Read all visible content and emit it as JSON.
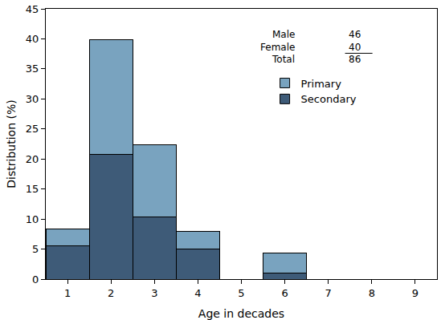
{
  "chart_data": {
    "type": "bar",
    "stacked": true,
    "x_label": "Age in decades",
    "y_label": "Distribution (%)",
    "x": [
      1,
      2,
      3,
      4,
      5,
      6,
      7,
      8,
      9
    ],
    "series": [
      {
        "name": "Secondary",
        "color": "#3e5b78",
        "values": [
          5.5,
          20.8,
          10.4,
          5.0,
          0,
          1.0,
          0,
          0,
          0
        ]
      },
      {
        "name": "Primary",
        "color": "#79a3bf",
        "values": [
          2.8,
          19.0,
          12.0,
          2.9,
          0,
          3.4,
          0,
          0,
          0
        ]
      }
    ],
    "xlim": [
      0.5,
      9.5
    ],
    "xticks": [
      1,
      2,
      3,
      4,
      5,
      6,
      7,
      8,
      9
    ],
    "ylim": [
      0,
      45
    ],
    "yticks": [
      0,
      5,
      10,
      15,
      20,
      25,
      30,
      35,
      40,
      45
    ],
    "grid": false,
    "legend": "top right",
    "annotations": [
      {
        "text": "Male",
        "value": 46
      },
      {
        "text": "Female",
        "value": 40
      },
      {
        "text": "Total",
        "value": 86
      }
    ]
  }
}
